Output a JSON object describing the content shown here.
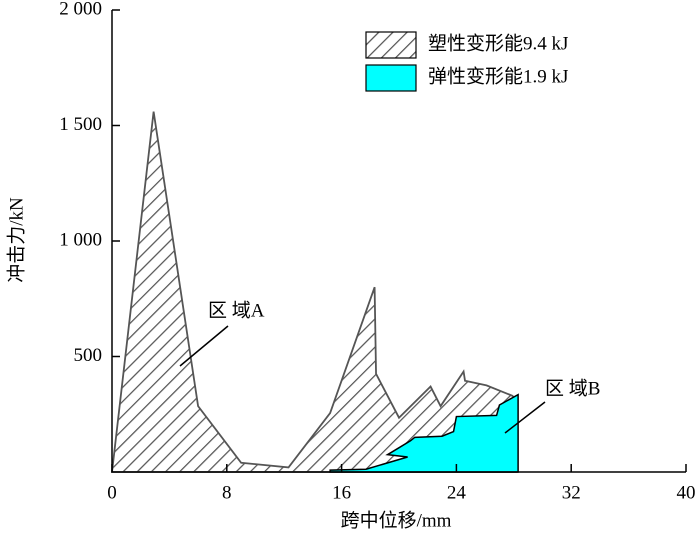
{
  "chart_data": {
    "type": "area",
    "xlabel": "跨中位移/mm",
    "ylabel": "冲击力/kN",
    "xlim": [
      0,
      40
    ],
    "ylim": [
      0,
      2000
    ],
    "xticks": [
      0,
      8,
      16,
      24,
      32,
      40
    ],
    "yticks": [
      500,
      {
        "value": 1000,
        "label": "1 000"
      },
      {
        "value": 1500,
        "label": "1 500"
      },
      {
        "value": 2000,
        "label": "2 000"
      }
    ],
    "legend": "upper right",
    "series": [
      {
        "name": "塑性变形能9.4 kJ",
        "color": "#555555",
        "pattern": "hatch",
        "x": [
          0,
          2.9,
          6,
          9,
          12.3,
          15.2,
          18.3,
          18.4,
          20,
          22.2,
          22.9,
          24.5,
          24.6,
          26.1,
          27.9,
          28.2
        ],
        "values": [
          0,
          1560,
          285,
          40,
          20,
          255,
          800,
          425,
          235,
          370,
          285,
          435,
          395,
          375,
          330,
          310
        ]
      },
      {
        "name": "弹性变形能1.9 kJ",
        "color": "#00ffff",
        "pattern": "solid",
        "x": [
          15.2,
          17.7,
          20.6,
          19.2,
          20.8,
          21.1,
          23,
          23.8,
          24,
          26.8,
          27,
          28.3
        ],
        "values": [
          8,
          12,
          65,
          75,
          135,
          150,
          155,
          175,
          240,
          245,
          290,
          335
        ]
      }
    ],
    "annotations": [
      "区 域A",
      "区 域B"
    ]
  }
}
